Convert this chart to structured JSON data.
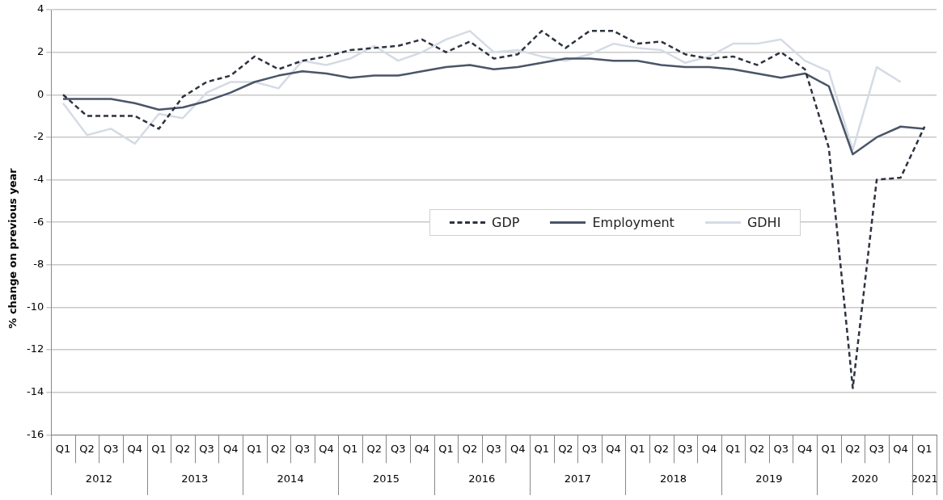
{
  "chart_data": {
    "type": "line",
    "ylabel": "% change on previous year",
    "categories": [
      "Q1",
      "Q2",
      "Q3",
      "Q4",
      "Q1",
      "Q2",
      "Q3",
      "Q4",
      "Q1",
      "Q2",
      "Q3",
      "Q4",
      "Q1",
      "Q2",
      "Q3",
      "Q4",
      "Q1",
      "Q2",
      "Q3",
      "Q4",
      "Q1",
      "Q2",
      "Q3",
      "Q4",
      "Q1",
      "Q2",
      "Q3",
      "Q4",
      "Q1",
      "Q2",
      "Q3",
      "Q4",
      "Q1",
      "Q2",
      "Q3",
      "Q4",
      "Q1"
    ],
    "annotations": [
      "2012",
      "2013",
      "2014",
      "2015",
      "2016",
      "2017",
      "2018",
      "2019",
      "2020",
      "2021"
    ],
    "series": [
      {
        "name": "GDP",
        "color": "#2d3340",
        "line_style": "dashed",
        "values": [
          0,
          -1.0,
          -1.0,
          -1.0,
          -1.6,
          -0.1,
          0.6,
          0.9,
          1.8,
          1.2,
          1.6,
          1.8,
          2.1,
          2.2,
          2.3,
          2.6,
          2.0,
          2.5,
          1.7,
          1.9,
          3.0,
          2.2,
          3.0,
          3.0,
          2.4,
          2.5,
          1.9,
          1.7,
          1.8,
          1.4,
          2.0,
          1.2,
          -2.5,
          -13.8,
          -4.0,
          -3.9,
          -1.5
        ]
      },
      {
        "name": "Employment",
        "color": "#4a5568",
        "line_style": "solid",
        "values": [
          -0.2,
          -0.2,
          -0.2,
          -0.4,
          -0.7,
          -0.6,
          -0.3,
          0.1,
          0.6,
          0.9,
          1.1,
          1.0,
          0.8,
          0.9,
          0.9,
          1.1,
          1.3,
          1.4,
          1.2,
          1.3,
          1.5,
          1.7,
          1.7,
          1.6,
          1.6,
          1.4,
          1.3,
          1.3,
          1.2,
          1.0,
          0.8,
          1.0,
          0.4,
          -2.8,
          -2.0,
          -1.5,
          -1.6
        ]
      },
      {
        "name": "GDHI",
        "color": "#d5dbe5",
        "line_style": "solid",
        "values": [
          -0.4,
          -1.9,
          -1.6,
          -2.3,
          -0.9,
          -1.1,
          0.1,
          0.6,
          0.6,
          0.3,
          1.6,
          1.4,
          1.7,
          2.3,
          1.6,
          2.0,
          2.6,
          3.0,
          2.0,
          2.1,
          1.8,
          1.6,
          1.9,
          2.4,
          2.2,
          2.1,
          1.5,
          1.8,
          2.4,
          2.4,
          2.6,
          1.6,
          1.1,
          -2.6,
          1.3,
          0.6,
          null
        ]
      }
    ],
    "ylim": [
      -16,
      4
    ],
    "yticks": [
      -16,
      -14,
      -12,
      -10,
      -8,
      -6,
      -4,
      -2,
      0,
      2,
      4
    ],
    "grid": "y",
    "legend": "center",
    "marker": "none"
  }
}
